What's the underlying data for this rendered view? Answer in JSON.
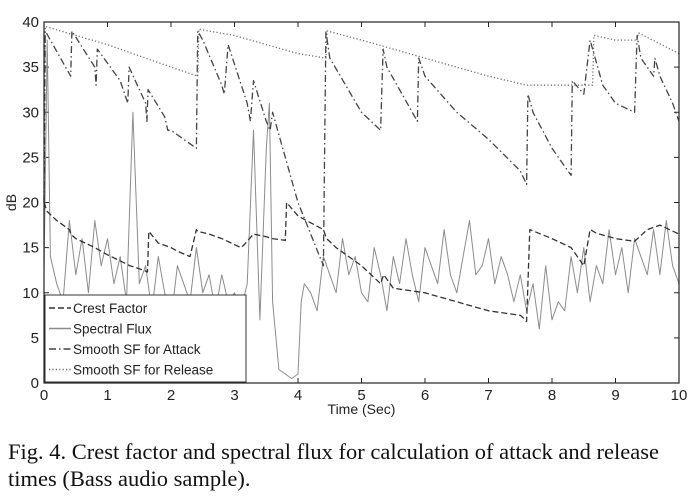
{
  "caption": "Fig. 4. Crest factor and spectral flux for calculation of attack and release times (Bass audio sample).",
  "chart_data": {
    "type": "line",
    "title": "",
    "xlabel": "Time (Sec)",
    "ylabel": "dB",
    "xlim": [
      0,
      10
    ],
    "ylim": [
      0,
      40
    ],
    "xticks": [
      0,
      1,
      2,
      3,
      4,
      5,
      6,
      7,
      8,
      9,
      10
    ],
    "yticks": [
      0,
      5,
      10,
      15,
      20,
      25,
      30,
      35,
      40
    ],
    "grid": false,
    "legend": "bottom-left",
    "series": [
      {
        "name": "Crest Factor",
        "style": "dashed",
        "color": "#333333",
        "x": [
          0,
          0.05,
          0.2,
          0.4,
          0.42,
          0.5,
          0.8,
          0.85,
          0.9,
          1.0,
          1.3,
          1.35,
          1.4,
          1.6,
          1.63,
          1.65,
          1.8,
          2.0,
          2.05,
          2.1,
          2.3,
          2.4,
          2.42,
          2.6,
          2.8,
          3.1,
          3.15,
          3.3,
          3.5,
          3.6,
          3.8,
          3.82,
          4.0,
          4.4,
          4.45,
          4.6,
          5.0,
          5.3,
          5.35,
          5.5,
          6.0,
          6.5,
          7.0,
          7.5,
          7.58,
          7.6,
          7.65,
          8.0,
          8.3,
          8.5,
          8.6,
          8.7,
          9.0,
          9.3,
          9.5,
          9.7,
          10.0
        ],
        "y": [
          20,
          19,
          18,
          17,
          16.5,
          16,
          15,
          14.8,
          14.6,
          14.2,
          13.2,
          13,
          12.9,
          12.4,
          12.3,
          16.8,
          15.5,
          15,
          14.8,
          14.6,
          14,
          17,
          16.8,
          16.5,
          16,
          15,
          15.3,
          16.5,
          16.2,
          16,
          15.8,
          20,
          18.5,
          17,
          16,
          15,
          13,
          11,
          12,
          10.5,
          10,
          9,
          8,
          7.5,
          7,
          6.8,
          17,
          16,
          15,
          13,
          17,
          16.6,
          16,
          15.7,
          17,
          17.5,
          16.5
        ]
      },
      {
        "name": "Spectral Flux",
        "style": "solid",
        "color": "#8c8c8c",
        "x": [
          0,
          0.05,
          0.1,
          0.2,
          0.3,
          0.4,
          0.5,
          0.6,
          0.7,
          0.8,
          0.9,
          1.0,
          1.1,
          1.2,
          1.3,
          1.4,
          1.5,
          1.6,
          1.7,
          1.8,
          1.9,
          2.0,
          2.1,
          2.2,
          2.3,
          2.4,
          2.5,
          2.6,
          2.7,
          2.8,
          2.9,
          3.0,
          3.1,
          3.2,
          3.3,
          3.4,
          3.5,
          3.55,
          3.6,
          3.7,
          3.8,
          3.9,
          4.0,
          4.05,
          4.1,
          4.2,
          4.3,
          4.4,
          4.5,
          4.6,
          4.7,
          4.8,
          4.9,
          5.0,
          5.1,
          5.2,
          5.3,
          5.4,
          5.5,
          5.6,
          5.7,
          5.8,
          5.9,
          6.0,
          6.1,
          6.2,
          6.3,
          6.4,
          6.5,
          6.6,
          6.7,
          6.8,
          6.9,
          7.0,
          7.1,
          7.2,
          7.3,
          7.4,
          7.5,
          7.6,
          7.7,
          7.8,
          7.9,
          8.0,
          8.1,
          8.2,
          8.3,
          8.4,
          8.5,
          8.6,
          8.7,
          8.8,
          8.9,
          9.0,
          9.1,
          9.2,
          9.3,
          9.4,
          9.5,
          9.6,
          9.7,
          9.8,
          9.9,
          10.0
        ],
        "y": [
          12,
          38,
          14,
          11,
          9,
          18,
          12,
          16,
          10,
          18,
          13,
          16,
          11,
          14,
          9,
          30,
          11,
          13,
          8,
          14,
          10,
          7,
          13,
          11,
          9,
          15,
          10,
          12,
          8,
          12,
          9,
          10,
          8,
          11,
          28,
          7,
          26,
          31,
          9,
          1.5,
          1,
          0.5,
          1,
          9,
          11,
          10,
          8,
          14,
          12,
          10,
          16,
          12,
          14,
          10,
          9,
          15,
          12,
          8,
          14,
          11,
          16,
          12,
          9,
          15,
          13,
          11,
          17,
          12,
          10,
          14,
          18,
          12,
          13,
          16,
          11,
          14,
          12,
          9,
          12,
          8,
          11,
          6,
          13,
          7,
          9,
          8,
          14,
          10,
          15,
          9,
          13,
          11,
          17,
          12,
          15,
          10,
          16,
          14,
          12,
          17,
          12,
          18,
          13,
          11
        ]
      },
      {
        "name": "Smooth SF for Attack",
        "style": "dash-dot",
        "color": "#444444",
        "x": [
          0,
          0.02,
          0.3,
          0.42,
          0.44,
          0.8,
          0.82,
          0.84,
          1.2,
          1.32,
          1.34,
          1.6,
          1.62,
          1.64,
          1.9,
          1.95,
          2.0,
          2.4,
          2.42,
          2.5,
          2.8,
          2.84,
          2.9,
          3.2,
          3.25,
          3.3,
          3.5,
          3.56,
          3.6,
          4.0,
          4.4,
          4.44,
          4.5,
          5.0,
          5.3,
          5.34,
          5.4,
          5.8,
          5.88,
          5.9,
          6.0,
          6.5,
          7.0,
          7.5,
          7.6,
          7.62,
          7.7,
          8.0,
          8.2,
          8.3,
          8.32,
          8.5,
          8.6,
          8.64,
          8.8,
          9.0,
          9.3,
          9.34,
          9.4,
          9.6,
          9.62,
          9.7,
          9.9,
          10.0
        ],
        "y": [
          20,
          39,
          35.5,
          34,
          39,
          35,
          33,
          37,
          33.5,
          31,
          35,
          31,
          29,
          32.5,
          29.5,
          28,
          28,
          26,
          39,
          38,
          33,
          32,
          37.5,
          31,
          29,
          33.5,
          29,
          28,
          30,
          20,
          13,
          39,
          36,
          30,
          28,
          37,
          35,
          30,
          29,
          36,
          34,
          30,
          27,
          23.5,
          22,
          32,
          30,
          26,
          24,
          23,
          33.5,
          32,
          38,
          37,
          33,
          31,
          30,
          38.5,
          36,
          34,
          36,
          34,
          31,
          29
        ]
      },
      {
        "name": "Smooth SF for Release",
        "style": "dotted",
        "color": "#6a6a6a",
        "x": [
          0,
          0.02,
          1.0,
          2.0,
          2.42,
          2.44,
          3.0,
          3.5,
          4.0,
          4.44,
          4.46,
          5.0,
          6.0,
          7.0,
          7.6,
          7.8,
          8.3,
          8.64,
          8.66,
          9.0,
          9.34,
          9.36,
          10.0
        ],
        "y": [
          20,
          39.5,
          37.5,
          35,
          34,
          39.2,
          38.5,
          37.5,
          36.5,
          36,
          39,
          38,
          36,
          34,
          33,
          33,
          33,
          33,
          38.5,
          38,
          38,
          38.8,
          36.5
        ]
      }
    ]
  }
}
